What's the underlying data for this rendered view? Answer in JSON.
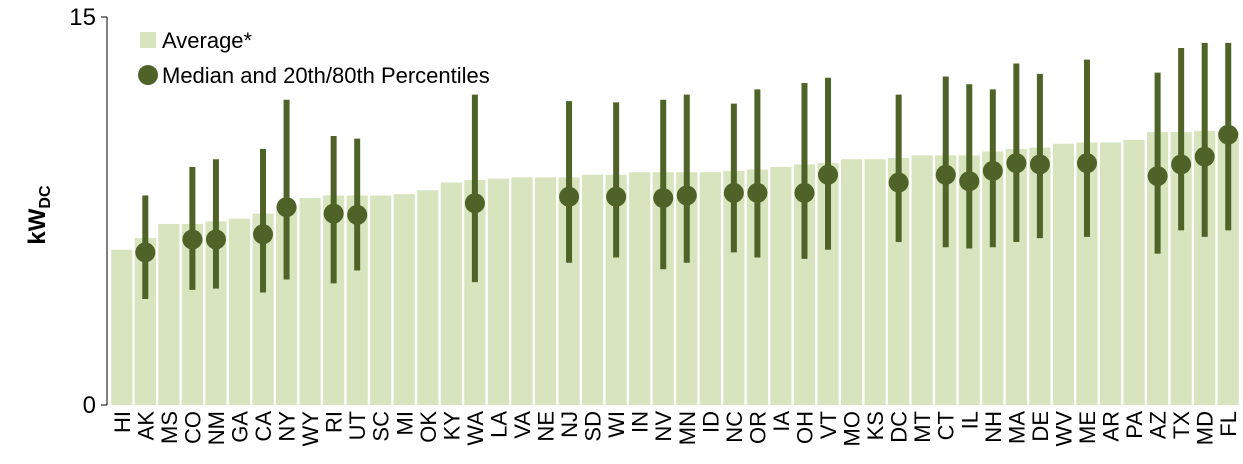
{
  "chart_data": {
    "type": "bar",
    "ylabel": "kW",
    "ylabel_sub": "DC",
    "categories": [
      "HI",
      "AK",
      "MS",
      "CO",
      "NM",
      "GA",
      "CA",
      "NY",
      "WY",
      "RI",
      "UT",
      "SC",
      "MI",
      "OK",
      "KY",
      "WA",
      "LA",
      "VA",
      "NE",
      "NJ",
      "SD",
      "WI",
      "IN",
      "NV",
      "MN",
      "ID",
      "NC",
      "OR",
      "IA",
      "OH",
      "VT",
      "MO",
      "KS",
      "DC",
      "MT",
      "CT",
      "IL",
      "NH",
      "MA",
      "DE",
      "WV",
      "ME",
      "AR",
      "PA",
      "AZ",
      "TX",
      "MD",
      "FL"
    ],
    "ylim": [
      0,
      15
    ],
    "yticks": [
      0,
      15
    ],
    "series": [
      {
        "name": "Average*",
        "color": "#d7e4bd",
        "values": [
          6.0,
          6.45,
          7.0,
          7.0,
          7.1,
          7.2,
          7.4,
          7.7,
          8.0,
          8.1,
          8.1,
          8.1,
          8.15,
          8.3,
          8.6,
          8.7,
          8.75,
          8.8,
          8.8,
          8.8,
          8.9,
          8.9,
          9.0,
          9.0,
          9.0,
          9.0,
          9.05,
          9.1,
          9.2,
          9.3,
          9.35,
          9.5,
          9.5,
          9.55,
          9.65,
          9.65,
          9.65,
          9.8,
          9.9,
          9.95,
          10.1,
          10.15,
          10.15,
          10.25,
          10.55,
          10.55,
          10.6,
          10.6
        ]
      },
      {
        "name": "Median and 20th/80th Percentiles",
        "color": "#4f6228",
        "values": [
          null,
          5.9,
          null,
          6.4,
          6.4,
          null,
          6.6,
          7.65,
          null,
          7.4,
          7.35,
          null,
          null,
          null,
          null,
          7.8,
          null,
          null,
          null,
          8.05,
          null,
          8.05,
          null,
          8.0,
          8.1,
          null,
          8.2,
          8.2,
          null,
          8.2,
          8.9,
          null,
          null,
          8.6,
          null,
          8.9,
          8.65,
          9.05,
          9.35,
          9.3,
          null,
          9.35,
          null,
          null,
          8.85,
          9.3,
          9.6,
          10.45
        ],
        "p20": [
          null,
          4.1,
          null,
          4.45,
          4.5,
          null,
          4.35,
          4.85,
          null,
          4.7,
          5.2,
          null,
          null,
          null,
          null,
          4.75,
          null,
          null,
          null,
          5.5,
          null,
          5.7,
          null,
          5.25,
          5.5,
          null,
          5.9,
          5.7,
          null,
          5.65,
          6.0,
          null,
          null,
          6.3,
          null,
          6.1,
          6.05,
          6.1,
          6.3,
          6.45,
          null,
          6.5,
          null,
          null,
          5.85,
          6.75,
          6.5,
          6.75
        ],
        "p80": [
          null,
          8.1,
          null,
          9.2,
          9.5,
          null,
          9.9,
          11.8,
          null,
          10.4,
          10.3,
          null,
          null,
          null,
          null,
          12.0,
          null,
          null,
          null,
          11.75,
          null,
          11.7,
          null,
          11.8,
          12.0,
          null,
          11.65,
          12.2,
          null,
          12.45,
          12.65,
          null,
          null,
          12.0,
          null,
          12.7,
          12.4,
          12.2,
          13.2,
          12.8,
          null,
          13.35,
          null,
          null,
          12.85,
          13.8,
          14.0,
          14.0
        ]
      }
    ]
  }
}
